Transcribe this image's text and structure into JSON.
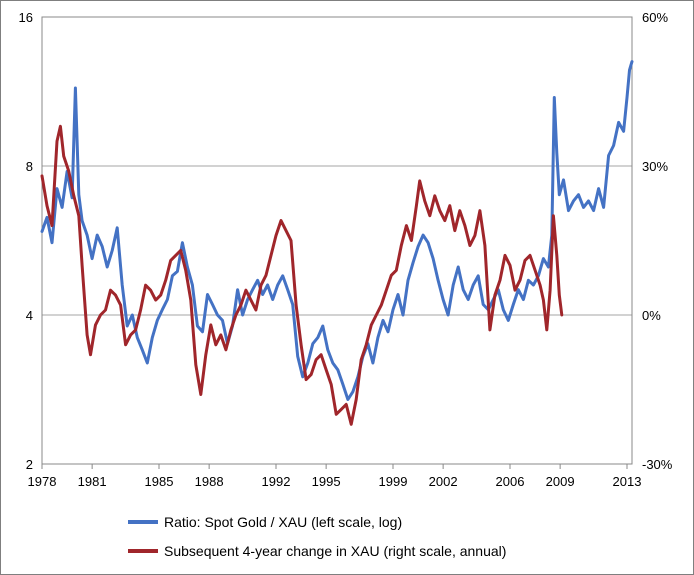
{
  "chart_data": {
    "type": "line",
    "title": "",
    "x_ticks": [
      "1978",
      "1981",
      "1985",
      "1988",
      "1992",
      "1995",
      "1999",
      "2002",
      "2006",
      "2009",
      "2013"
    ],
    "x_range": [
      1978,
      2013.3
    ],
    "left_axis": {
      "scale": "log",
      "ylim": [
        2,
        16
      ],
      "ticks": [
        "2",
        "4",
        "8",
        "16"
      ]
    },
    "right_axis": {
      "scale": "linear",
      "ylim": [
        -30,
        60
      ],
      "unit": "%",
      "ticks": [
        "-30%",
        "0%",
        "30%",
        "60%"
      ]
    },
    "grid": "horizontal",
    "legend_position": "bottom",
    "series": [
      {
        "name": "Ratio: Spot Gold / XAU (left scale, log)",
        "axis": "left",
        "color": "#4472c4",
        "points": [
          [
            1978.0,
            5.9
          ],
          [
            1978.3,
            6.3
          ],
          [
            1978.6,
            5.6
          ],
          [
            1978.9,
            7.2
          ],
          [
            1979.2,
            6.6
          ],
          [
            1979.5,
            7.8
          ],
          [
            1979.8,
            6.9
          ],
          [
            1980.0,
            11.5
          ],
          [
            1980.2,
            7.0
          ],
          [
            1980.4,
            6.2
          ],
          [
            1980.7,
            5.8
          ],
          [
            1981.0,
            5.2
          ],
          [
            1981.3,
            5.8
          ],
          [
            1981.6,
            5.5
          ],
          [
            1981.9,
            5.0
          ],
          [
            1982.2,
            5.4
          ],
          [
            1982.5,
            6.0
          ],
          [
            1982.8,
            4.6
          ],
          [
            1983.1,
            3.8
          ],
          [
            1983.4,
            4.0
          ],
          [
            1983.7,
            3.6
          ],
          [
            1984.0,
            3.4
          ],
          [
            1984.3,
            3.2
          ],
          [
            1984.6,
            3.6
          ],
          [
            1984.9,
            3.9
          ],
          [
            1985.2,
            4.1
          ],
          [
            1985.5,
            4.3
          ],
          [
            1985.8,
            4.8
          ],
          [
            1986.1,
            4.9
          ],
          [
            1986.4,
            5.6
          ],
          [
            1986.7,
            5.0
          ],
          [
            1987.0,
            4.6
          ],
          [
            1987.3,
            3.8
          ],
          [
            1987.6,
            3.7
          ],
          [
            1987.9,
            4.4
          ],
          [
            1988.2,
            4.2
          ],
          [
            1988.5,
            4.0
          ],
          [
            1988.8,
            3.9
          ],
          [
            1989.1,
            3.5
          ],
          [
            1989.4,
            3.8
          ],
          [
            1989.7,
            4.5
          ],
          [
            1990.0,
            4.0
          ],
          [
            1990.3,
            4.3
          ],
          [
            1990.6,
            4.5
          ],
          [
            1990.9,
            4.7
          ],
          [
            1991.2,
            4.4
          ],
          [
            1991.5,
            4.6
          ],
          [
            1991.8,
            4.3
          ],
          [
            1992.1,
            4.6
          ],
          [
            1992.4,
            4.8
          ],
          [
            1992.7,
            4.5
          ],
          [
            1993.0,
            4.2
          ],
          [
            1993.3,
            3.3
          ],
          [
            1993.6,
            3.0
          ],
          [
            1993.9,
            3.2
          ],
          [
            1994.2,
            3.5
          ],
          [
            1994.5,
            3.6
          ],
          [
            1994.8,
            3.8
          ],
          [
            1995.1,
            3.4
          ],
          [
            1995.4,
            3.2
          ],
          [
            1995.7,
            3.1
          ],
          [
            1996.0,
            2.9
          ],
          [
            1996.3,
            2.7
          ],
          [
            1996.6,
            2.8
          ],
          [
            1996.9,
            3.0
          ],
          [
            1997.2,
            3.3
          ],
          [
            1997.5,
            3.5
          ],
          [
            1997.8,
            3.2
          ],
          [
            1998.1,
            3.6
          ],
          [
            1998.4,
            3.9
          ],
          [
            1998.7,
            3.7
          ],
          [
            1999.0,
            4.1
          ],
          [
            1999.3,
            4.4
          ],
          [
            1999.6,
            4.0
          ],
          [
            1999.9,
            4.7
          ],
          [
            2000.2,
            5.1
          ],
          [
            2000.5,
            5.5
          ],
          [
            2000.8,
            5.8
          ],
          [
            2001.1,
            5.6
          ],
          [
            2001.4,
            5.2
          ],
          [
            2001.7,
            4.7
          ],
          [
            2002.0,
            4.3
          ],
          [
            2002.3,
            4.0
          ],
          [
            2002.6,
            4.6
          ],
          [
            2002.9,
            5.0
          ],
          [
            2003.2,
            4.5
          ],
          [
            2003.5,
            4.3
          ],
          [
            2003.8,
            4.6
          ],
          [
            2004.1,
            4.8
          ],
          [
            2004.4,
            4.2
          ],
          [
            2004.7,
            4.1
          ],
          [
            2005.0,
            4.3
          ],
          [
            2005.3,
            4.5
          ],
          [
            2005.6,
            4.1
          ],
          [
            2005.9,
            3.9
          ],
          [
            2006.2,
            4.2
          ],
          [
            2006.5,
            4.5
          ],
          [
            2006.8,
            4.3
          ],
          [
            2007.1,
            4.7
          ],
          [
            2007.4,
            4.6
          ],
          [
            2007.7,
            4.8
          ],
          [
            2008.0,
            5.2
          ],
          [
            2008.3,
            5.0
          ],
          [
            2008.5,
            5.8
          ],
          [
            2008.65,
            11.0
          ],
          [
            2008.8,
            8.5
          ],
          [
            2008.95,
            7.0
          ],
          [
            2009.2,
            7.5
          ],
          [
            2009.5,
            6.5
          ],
          [
            2009.8,
            6.8
          ],
          [
            2010.1,
            7.0
          ],
          [
            2010.4,
            6.6
          ],
          [
            2010.7,
            6.8
          ],
          [
            2011.0,
            6.5
          ],
          [
            2011.3,
            7.2
          ],
          [
            2011.6,
            6.6
          ],
          [
            2011.9,
            8.4
          ],
          [
            2012.2,
            8.8
          ],
          [
            2012.5,
            9.8
          ],
          [
            2012.8,
            9.4
          ],
          [
            2013.0,
            11.0
          ],
          [
            2013.15,
            12.5
          ],
          [
            2013.3,
            13.0
          ]
        ]
      },
      {
        "name": "Subsequent 4-year change in XAU (right scale, annual)",
        "axis": "right",
        "color": "#a0262b",
        "points": [
          [
            1978.0,
            28
          ],
          [
            1978.3,
            22
          ],
          [
            1978.6,
            18
          ],
          [
            1978.9,
            35
          ],
          [
            1979.1,
            38
          ],
          [
            1979.3,
            32
          ],
          [
            1979.6,
            29
          ],
          [
            1979.9,
            24
          ],
          [
            1980.2,
            20
          ],
          [
            1980.4,
            10
          ],
          [
            1980.7,
            -4
          ],
          [
            1980.9,
            -8
          ],
          [
            1981.2,
            -2
          ],
          [
            1981.5,
            0
          ],
          [
            1981.8,
            1
          ],
          [
            1982.1,
            5
          ],
          [
            1982.4,
            4
          ],
          [
            1982.7,
            2
          ],
          [
            1983.0,
            -6
          ],
          [
            1983.3,
            -4
          ],
          [
            1983.6,
            -3
          ],
          [
            1983.9,
            1
          ],
          [
            1984.2,
            6
          ],
          [
            1984.5,
            5
          ],
          [
            1984.8,
            3
          ],
          [
            1985.1,
            4
          ],
          [
            1985.4,
            7
          ],
          [
            1985.7,
            11
          ],
          [
            1986.0,
            12
          ],
          [
            1986.3,
            13
          ],
          [
            1986.6,
            9
          ],
          [
            1986.9,
            3
          ],
          [
            1987.2,
            -10
          ],
          [
            1987.5,
            -16
          ],
          [
            1987.8,
            -8
          ],
          [
            1988.1,
            -2
          ],
          [
            1988.4,
            -6
          ],
          [
            1988.7,
            -4
          ],
          [
            1989.0,
            -7
          ],
          [
            1989.3,
            -3
          ],
          [
            1989.6,
            0
          ],
          [
            1989.9,
            2
          ],
          [
            1990.2,
            5
          ],
          [
            1990.5,
            3
          ],
          [
            1990.8,
            1
          ],
          [
            1991.1,
            6
          ],
          [
            1991.4,
            8
          ],
          [
            1991.7,
            12
          ],
          [
            1992.0,
            16
          ],
          [
            1992.3,
            19
          ],
          [
            1992.6,
            17
          ],
          [
            1992.9,
            15
          ],
          [
            1993.2,
            2
          ],
          [
            1993.5,
            -6
          ],
          [
            1993.8,
            -13
          ],
          [
            1994.1,
            -12
          ],
          [
            1994.4,
            -9
          ],
          [
            1994.7,
            -8
          ],
          [
            1995.0,
            -11
          ],
          [
            1995.3,
            -14
          ],
          [
            1995.6,
            -20
          ],
          [
            1995.9,
            -19
          ],
          [
            1996.2,
            -18
          ],
          [
            1996.5,
            -22
          ],
          [
            1996.8,
            -17
          ],
          [
            1997.1,
            -9
          ],
          [
            1997.4,
            -6
          ],
          [
            1997.7,
            -2
          ],
          [
            1998.0,
            0
          ],
          [
            1998.3,
            2
          ],
          [
            1998.6,
            5
          ],
          [
            1998.9,
            8
          ],
          [
            1999.2,
            9
          ],
          [
            1999.5,
            14
          ],
          [
            1999.8,
            18
          ],
          [
            2000.1,
            15
          ],
          [
            2000.4,
            22
          ],
          [
            2000.6,
            27
          ],
          [
            2000.9,
            23
          ],
          [
            2001.2,
            20
          ],
          [
            2001.5,
            24
          ],
          [
            2001.8,
            21
          ],
          [
            2002.1,
            19
          ],
          [
            2002.4,
            22
          ],
          [
            2002.7,
            17
          ],
          [
            2003.0,
            21
          ],
          [
            2003.3,
            18
          ],
          [
            2003.6,
            14
          ],
          [
            2003.9,
            16
          ],
          [
            2004.2,
            21
          ],
          [
            2004.5,
            14
          ],
          [
            2004.8,
            -3
          ],
          [
            2005.1,
            4
          ],
          [
            2005.4,
            7
          ],
          [
            2005.7,
            12
          ],
          [
            2006.0,
            10
          ],
          [
            2006.3,
            5
          ],
          [
            2006.6,
            7
          ],
          [
            2006.9,
            11
          ],
          [
            2007.2,
            12
          ],
          [
            2007.5,
            9
          ],
          [
            2007.8,
            6
          ],
          [
            2008.0,
            3
          ],
          [
            2008.2,
            -3
          ],
          [
            2008.4,
            5
          ],
          [
            2008.6,
            20
          ],
          [
            2008.8,
            12
          ],
          [
            2008.95,
            4
          ],
          [
            2009.1,
            0
          ]
        ]
      }
    ]
  }
}
